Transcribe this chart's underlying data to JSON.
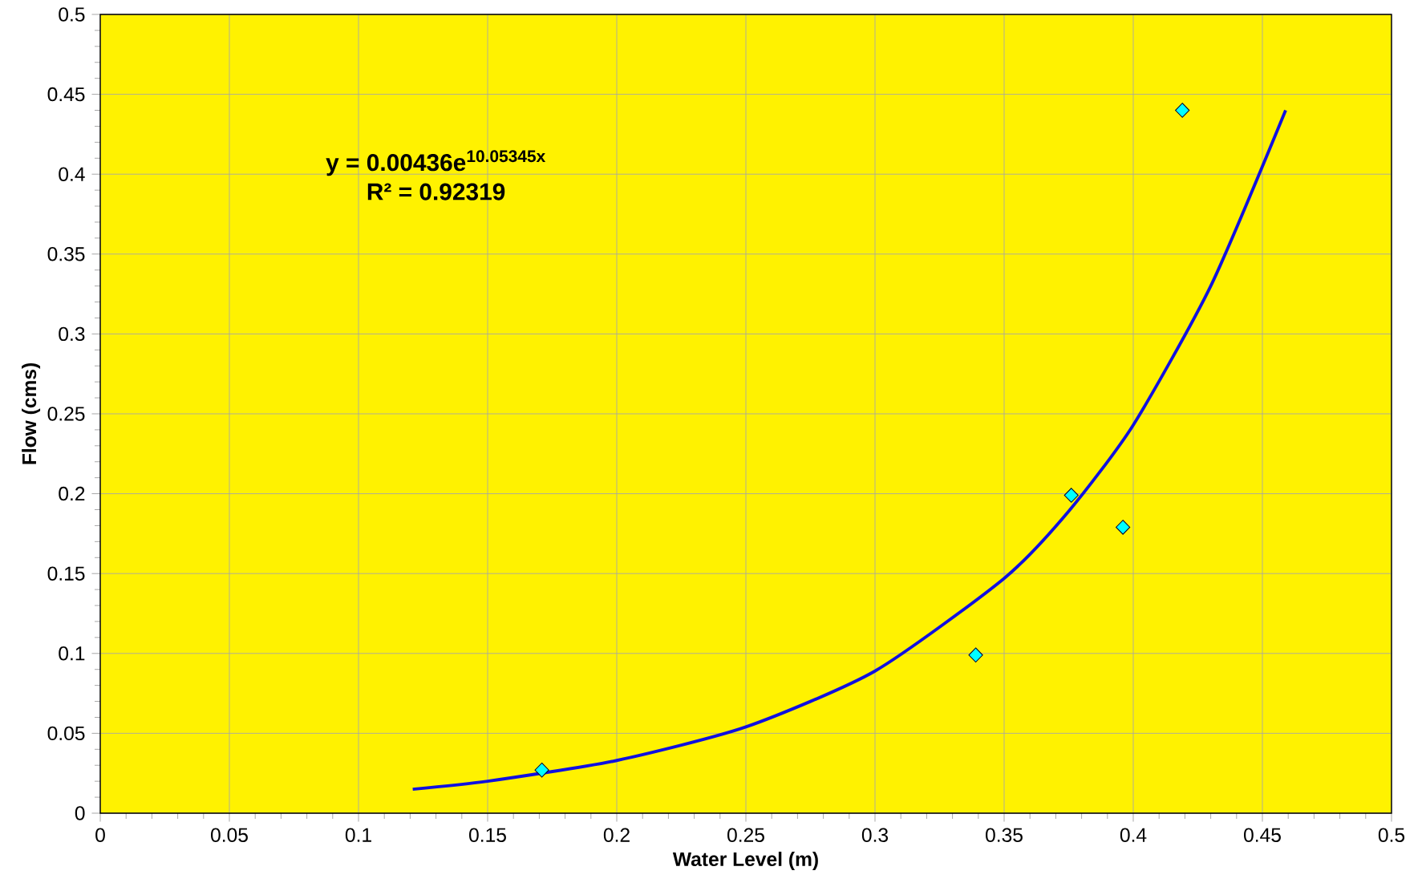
{
  "chart_data": {
    "type": "scatter",
    "xlabel": "Water Level (m)",
    "ylabel": "Flow (cms)",
    "xlim": [
      0,
      0.5
    ],
    "ylim": [
      0,
      0.5
    ],
    "xticks": [
      0,
      0.05,
      0.1,
      0.15,
      0.2,
      0.25,
      0.3,
      0.35,
      0.4,
      0.45,
      0.5
    ],
    "yticks": [
      0,
      0.05,
      0.1,
      0.15,
      0.2,
      0.25,
      0.3,
      0.35,
      0.4,
      0.45,
      0.5
    ],
    "grid": true,
    "annotations": [
      "y = 0.00436e$^{10.05345x}$",
      "R² = 0.92319"
    ],
    "series": [
      {
        "marker": "diamond",
        "color": "#00ffff",
        "x": [
          0.171,
          0.339,
          0.376,
          0.396,
          0.419
        ],
        "values": [
          0.027,
          0.099,
          0.199,
          0.179,
          0.44
        ]
      },
      {
        "type": "line",
        "marker": "none",
        "color": "#1010e0",
        "x": [
          0.121,
          0.15,
          0.2,
          0.25,
          0.3,
          0.35,
          0.375,
          0.4,
          0.43,
          0.459
        ],
        "values": [
          0.015,
          0.02,
          0.033,
          0.054,
          0.089,
          0.147,
          0.189,
          0.243,
          0.33,
          0.44
        ]
      }
    ]
  }
}
